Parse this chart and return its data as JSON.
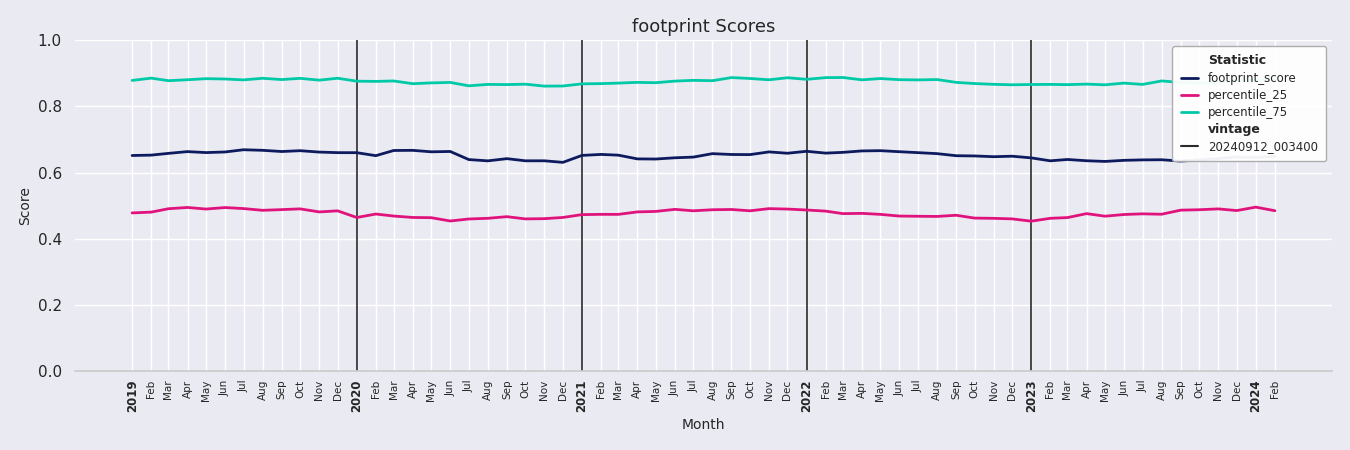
{
  "title": "footprint Scores",
  "xlabel": "Month",
  "ylabel": "Score",
  "ylim": [
    0.0,
    1.0
  ],
  "yticks": [
    0.0,
    0.2,
    0.4,
    0.6,
    0.8,
    1.0
  ],
  "line_colors": {
    "footprint_score": "#0d1b5e",
    "percentile_25": "#e0137c",
    "percentile_75": "#00c9a7"
  },
  "vline_color": "#2a2a2a",
  "vline_years": [
    "2020",
    "2021",
    "2022",
    "2023"
  ],
  "legend_statistic_label": "Statistic",
  "legend_vintage_label": "vintage",
  "legend_vintage_entry": "20240912_003400",
  "background_color": "#eaeaf2",
  "grid_color": "#ffffff",
  "figsize": [
    13.5,
    4.5
  ],
  "dpi": 100,
  "title_fontsize": 13
}
